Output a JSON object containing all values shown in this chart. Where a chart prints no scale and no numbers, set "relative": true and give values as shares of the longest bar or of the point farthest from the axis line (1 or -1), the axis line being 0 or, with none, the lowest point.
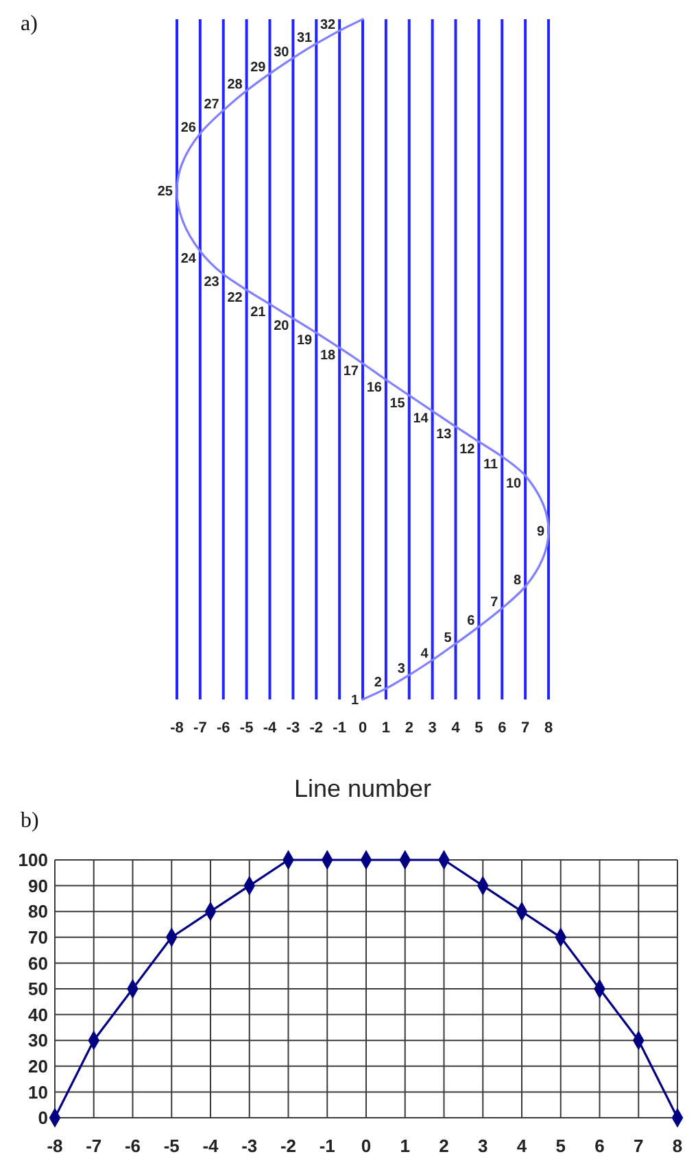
{
  "chart_data": [
    {
      "type": "line",
      "xlabel": "Line number",
      "relative": true,
      "tick_labels": "x",
      "grid": "x",
      "x": [
        0,
        1,
        2,
        3,
        4,
        5,
        6,
        7,
        8,
        7,
        6,
        5,
        4,
        3,
        2,
        1,
        0,
        -1,
        -2,
        -3,
        -4,
        -5,
        -6,
        -7,
        -8,
        -7,
        -6,
        -5,
        -4,
        -3,
        -2,
        -1,
        0
      ],
      "series": [
        {
          "color": "#8080ff",
          "values": [
            0,
            0.016,
            0.036,
            0.058,
            0.082,
            0.107,
            0.134,
            0.166,
            0.248,
            0.329,
            0.357,
            0.379,
            0.401,
            0.424,
            0.447,
            0.47,
            0.494,
            0.517,
            0.539,
            0.56,
            0.581,
            0.602,
            0.625,
            0.659,
            0.748,
            0.832,
            0.866,
            0.895,
            0.92,
            0.943,
            0.964,
            0.983,
            1
          ]
        }
      ],
      "xlim": [
        -8,
        8
      ],
      "xticks": [
        -8,
        -7,
        -6,
        -5,
        -4,
        -3,
        -2,
        -1,
        0,
        1,
        2,
        3,
        4,
        5,
        6,
        7,
        8
      ],
      "annotations": [
        "a)",
        {
          "text": "1",
          "x": 0,
          "y": 0
        },
        {
          "text": "2",
          "x": 1,
          "y": 0.016
        },
        {
          "text": "3",
          "x": 2,
          "y": 0.036
        },
        {
          "text": "4",
          "x": 3,
          "y": 0.058
        },
        {
          "text": "5",
          "x": 4,
          "y": 0.082
        },
        {
          "text": "6",
          "x": 5,
          "y": 0.107
        },
        {
          "text": "7",
          "x": 6,
          "y": 0.134
        },
        {
          "text": "8",
          "x": 7,
          "y": 0.166
        },
        {
          "text": "9",
          "x": 8,
          "y": 0.248
        },
        {
          "text": "10",
          "x": 7,
          "y": 0.329
        },
        {
          "text": "11",
          "x": 6,
          "y": 0.357
        },
        {
          "text": "12",
          "x": 5,
          "y": 0.379
        },
        {
          "text": "13",
          "x": 4,
          "y": 0.401
        },
        {
          "text": "14",
          "x": 3,
          "y": 0.424
        },
        {
          "text": "15",
          "x": 2,
          "y": 0.447
        },
        {
          "text": "16",
          "x": 1,
          "y": 0.47
        },
        {
          "text": "17",
          "x": 0,
          "y": 0.494
        },
        {
          "text": "18",
          "x": -1,
          "y": 0.517
        },
        {
          "text": "19",
          "x": -2,
          "y": 0.539
        },
        {
          "text": "20",
          "x": -3,
          "y": 0.56
        },
        {
          "text": "21",
          "x": -4,
          "y": 0.581
        },
        {
          "text": "22",
          "x": -5,
          "y": 0.602
        },
        {
          "text": "23",
          "x": -6,
          "y": 0.625
        },
        {
          "text": "24",
          "x": -7,
          "y": 0.659
        },
        {
          "text": "25",
          "x": -8,
          "y": 0.748
        },
        {
          "text": "26",
          "x": -7,
          "y": 0.832
        },
        {
          "text": "27",
          "x": -6,
          "y": 0.866
        },
        {
          "text": "28",
          "x": -5,
          "y": 0.895
        },
        {
          "text": "29",
          "x": -4,
          "y": 0.92
        },
        {
          "text": "30",
          "x": -3,
          "y": 0.943
        },
        {
          "text": "31",
          "x": -2,
          "y": 0.964
        },
        {
          "text": "32",
          "x": -1,
          "y": 0.983
        }
      ]
    },
    {
      "type": "line",
      "annotations": [
        "b)"
      ],
      "x": [
        -8,
        -7,
        -6,
        -5,
        -4,
        -3,
        -2,
        -1,
        0,
        1,
        2,
        3,
        4,
        5,
        6,
        7,
        8
      ],
      "series": [
        {
          "color": "#000080",
          "values": [
            0,
            30,
            50,
            70,
            80,
            90,
            100,
            100,
            100,
            100,
            100,
            90,
            80,
            70,
            50,
            30,
            0
          ]
        }
      ],
      "xlim": [
        -8,
        8
      ],
      "ylim": [
        0,
        100
      ],
      "xticks": [
        -8,
        -7,
        -6,
        -5,
        -4,
        -3,
        -2,
        -1,
        0,
        1,
        2,
        3,
        4,
        5,
        6,
        7,
        8
      ],
      "yticks": [
        0,
        10,
        20,
        30,
        40,
        50,
        60,
        70,
        80,
        90,
        100
      ],
      "grid": true,
      "marker": "diamond"
    }
  ]
}
